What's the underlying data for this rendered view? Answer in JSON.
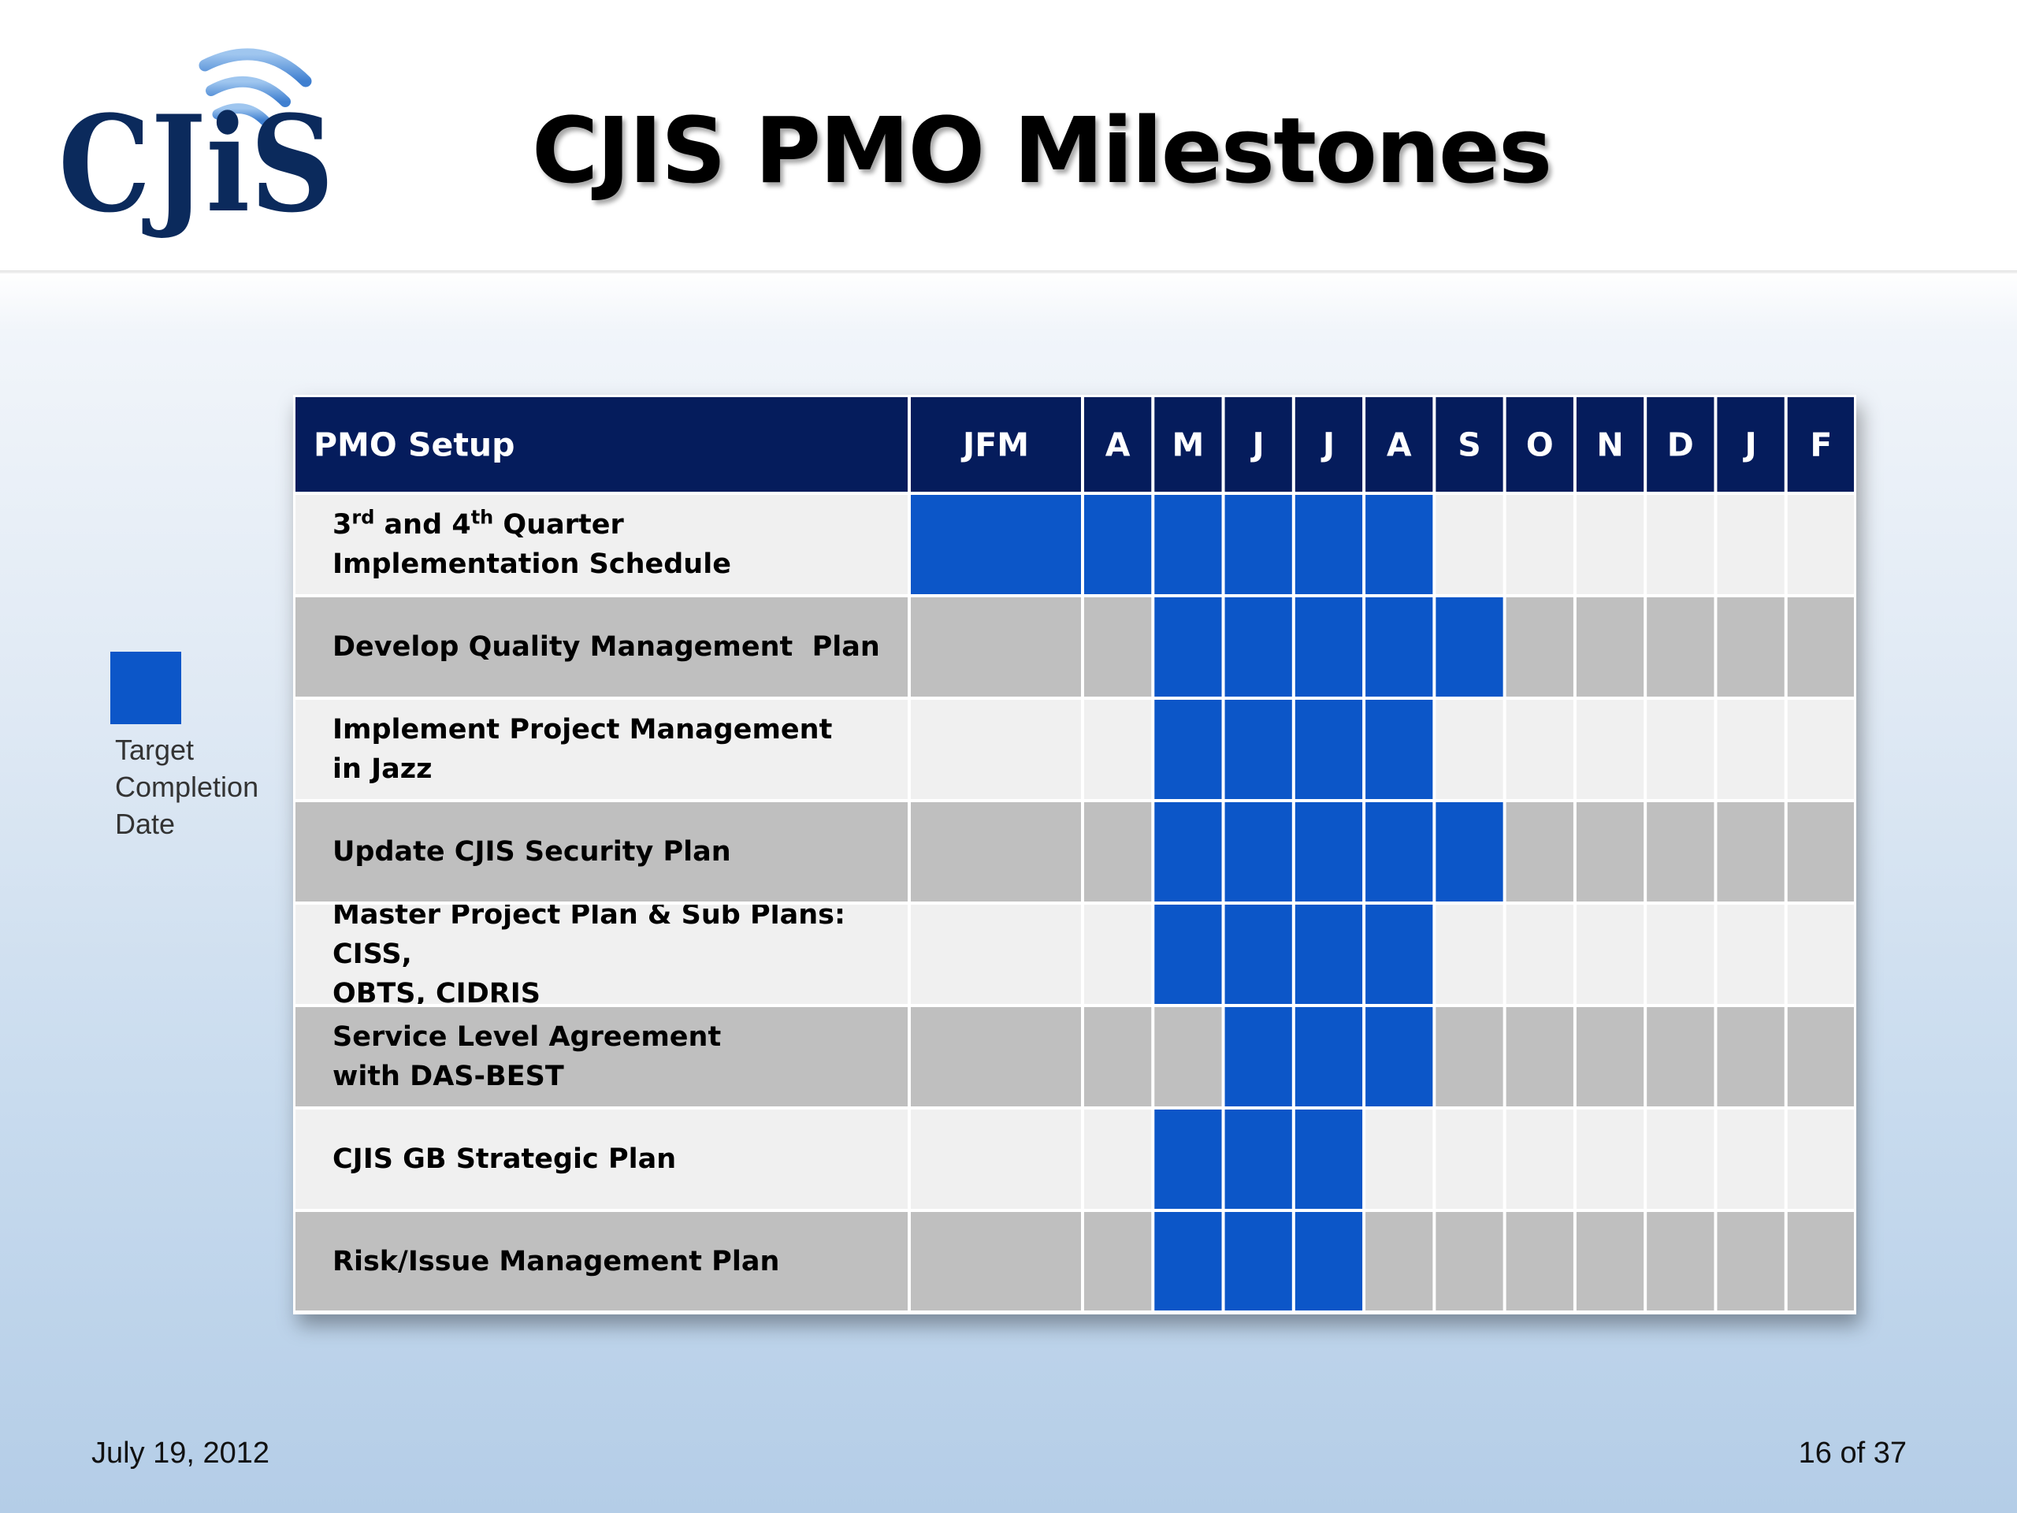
{
  "header": {
    "title": "CJIS PMO Milestones",
    "logo_text": "CJiS"
  },
  "legend": {
    "label_lines": [
      "Target",
      "Completion",
      "Date"
    ],
    "color": "#0c56c8"
  },
  "gantt": {
    "header_title": "PMO Setup",
    "columns": [
      "JFM",
      "A",
      "M",
      "J",
      "J",
      "A",
      "S",
      "O",
      "N",
      "D",
      "J",
      "F"
    ],
    "colors": {
      "header_bg": "#051c5c",
      "fill": "#0c56c8",
      "row_light": "#f0f0f0",
      "row_dark": "#bfbfbf",
      "grid": "#ffffff"
    },
    "rows": [
      {
        "label_html": "3<sup>rd</sup> and 4<sup>th</sup> Quarter<br>Implementation Schedule",
        "label_text": "3rd and 4th Quarter Implementation Schedule",
        "filled": [
          0,
          1,
          2,
          3,
          4,
          5
        ]
      },
      {
        "label_html": "Develop Quality Management&nbsp; Plan",
        "label_text": "Develop Quality Management  Plan",
        "filled": [
          2,
          3,
          4,
          5,
          6
        ]
      },
      {
        "label_html": "Implement Project Management<br>in Jazz",
        "label_text": "Implement Project Management in Jazz",
        "filled": [
          2,
          3,
          4,
          5
        ]
      },
      {
        "label_html": "Update CJIS Security Plan",
        "label_text": "Update CJIS Security Plan",
        "filled": [
          2,
          3,
          4,
          5,
          6
        ]
      },
      {
        "label_html": "Master Project Plan &amp; Sub Plans: CISS,<br>OBTS, CIDRIS",
        "label_text": "Master Project Plan & Sub Plans: CISS, OBTS, CIDRIS",
        "filled": [
          2,
          3,
          4,
          5
        ]
      },
      {
        "label_html": "Service Level Agreement<br>with DAS-BEST",
        "label_text": "Service Level Agreement with DAS-BEST",
        "filled": [
          3,
          4,
          5
        ]
      },
      {
        "label_html": "CJIS GB Strategic Plan",
        "label_text": "CJIS GB Strategic Plan",
        "filled": [
          2,
          3,
          4
        ]
      },
      {
        "label_html": "Risk/Issue Management Plan",
        "label_text": "Risk/Issue Management Plan",
        "filled": [
          2,
          3,
          4
        ]
      }
    ]
  },
  "footer": {
    "date": "July 19, 2012",
    "page": "16 of 37"
  }
}
